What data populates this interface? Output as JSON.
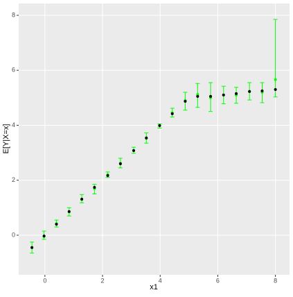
{
  "chart_data": {
    "type": "scatter",
    "x_label": "x1",
    "y_label": "E[Y|X=x]",
    "x": [
      -0.45,
      -0.03,
      0.4,
      0.84,
      1.28,
      1.72,
      2.18,
      2.62,
      3.08,
      3.52,
      3.98,
      4.42,
      4.87,
      5.3,
      5.75,
      6.2,
      6.64,
      7.1,
      7.54,
      8.0
    ],
    "values": [
      -0.45,
      -0.03,
      0.4,
      0.86,
      1.31,
      1.74,
      2.17,
      2.6,
      3.08,
      3.54,
      3.99,
      4.42,
      4.87,
      5.05,
      5.05,
      5.1,
      5.15,
      5.23,
      5.25,
      5.3
    ],
    "color": "#000000",
    "error_bars": {
      "color": "#00ff00",
      "values": [
        -0.45,
        -0.05,
        0.42,
        0.85,
        1.3,
        1.7,
        2.2,
        2.62,
        3.08,
        3.52,
        3.98,
        4.45,
        4.9,
        5.12,
        5.0,
        5.1,
        5.1,
        5.22,
        5.2,
        5.66
      ],
      "lower": [
        -0.65,
        -0.15,
        0.3,
        0.7,
        1.18,
        1.5,
        2.1,
        2.45,
        2.98,
        3.35,
        3.9,
        4.3,
        4.55,
        4.65,
        4.5,
        4.78,
        4.8,
        4.92,
        4.82,
        5.03
      ],
      "upper": [
        -0.25,
        0.15,
        0.55,
        1.0,
        1.48,
        1.85,
        2.3,
        2.8,
        3.2,
        3.72,
        4.05,
        4.62,
        5.2,
        5.52,
        5.55,
        5.42,
        5.38,
        5.55,
        5.55,
        7.85
      ]
    },
    "xlim": [
      -0.91,
      8.49
    ],
    "ylim": [
      -1.44,
      8.43
    ],
    "xticks": [
      0,
      2,
      4,
      6,
      8
    ],
    "yticks": [
      0,
      2,
      4,
      6,
      8
    ],
    "grid": true
  }
}
